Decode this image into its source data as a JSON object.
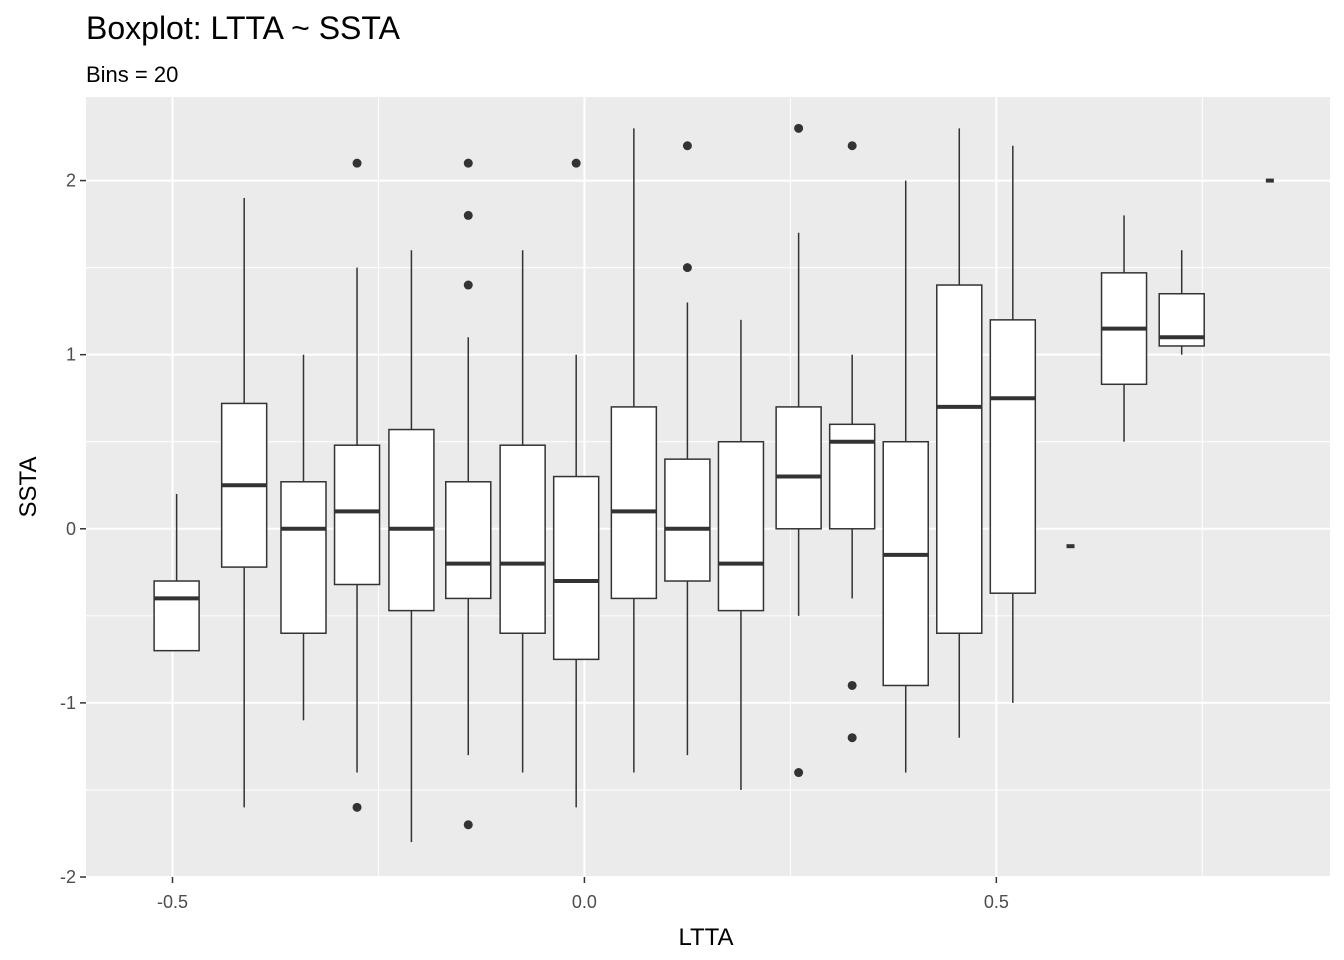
{
  "chart_data": {
    "type": "boxplot",
    "title": "Boxplot: LTTA ~ SSTA",
    "subtitle": "Bins = 20",
    "xlabel": "LTTA",
    "ylabel": "SSTA",
    "xlim": [
      -0.605,
      0.905
    ],
    "ylim": [
      -2.0,
      2.48
    ],
    "x_ticks": [
      -0.5,
      0.0,
      0.5
    ],
    "x_tick_labels": [
      "-0.5",
      "0.0",
      "0.5"
    ],
    "y_ticks": [
      -2,
      -1,
      0,
      1,
      2
    ],
    "y_tick_labels": [
      "-2",
      "-1",
      "0",
      "1",
      "2"
    ],
    "grid": true,
    "colors": {
      "panel": "#ebebeb",
      "grid": "#ffffff",
      "box_fill": "#ffffff",
      "stroke": "#333333",
      "tick_text": "#4d4d4d"
    },
    "boxes": [
      {
        "x": -0.495,
        "lower": -0.7,
        "q1": -0.7,
        "median": -0.4,
        "q3": -0.3,
        "upper": 0.2,
        "outliers": []
      },
      {
        "x": -0.413,
        "lower": -1.6,
        "q1": -0.22,
        "median": 0.25,
        "q3": 0.72,
        "upper": 1.9,
        "outliers": []
      },
      {
        "x": -0.341,
        "lower": -1.1,
        "q1": -0.6,
        "median": 0.0,
        "q3": 0.27,
        "upper": 1.0,
        "outliers": []
      },
      {
        "x": -0.276,
        "lower": -1.4,
        "q1": -0.32,
        "median": 0.1,
        "q3": 0.48,
        "upper": 1.5,
        "outliers": [
          2.1,
          -1.6
        ]
      },
      {
        "x": -0.21,
        "lower": -1.8,
        "q1": -0.47,
        "median": 0.0,
        "q3": 0.57,
        "upper": 1.6,
        "outliers": []
      },
      {
        "x": -0.141,
        "lower": -1.3,
        "q1": -0.4,
        "median": -0.2,
        "q3": 0.27,
        "upper": 1.1,
        "outliers": [
          2.1,
          1.8,
          1.4,
          -1.7
        ]
      },
      {
        "x": -0.075,
        "lower": -1.4,
        "q1": -0.6,
        "median": -0.2,
        "q3": 0.48,
        "upper": 1.6,
        "outliers": []
      },
      {
        "x": -0.01,
        "lower": -1.6,
        "q1": -0.75,
        "median": -0.3,
        "q3": 0.3,
        "upper": 1.0,
        "outliers": [
          2.1
        ]
      },
      {
        "x": 0.06,
        "lower": -1.4,
        "q1": -0.4,
        "median": 0.1,
        "q3": 0.7,
        "upper": 2.3,
        "outliers": []
      },
      {
        "x": 0.125,
        "lower": -1.3,
        "q1": -0.3,
        "median": 0.0,
        "q3": 0.4,
        "upper": 1.3,
        "outliers": [
          2.2,
          1.5
        ]
      },
      {
        "x": 0.19,
        "lower": -1.5,
        "q1": -0.47,
        "median": -0.2,
        "q3": 0.5,
        "upper": 1.2,
        "outliers": []
      },
      {
        "x": 0.26,
        "lower": -0.5,
        "q1": 0.0,
        "median": 0.3,
        "q3": 0.7,
        "upper": 1.7,
        "outliers": [
          2.3,
          -1.4
        ]
      },
      {
        "x": 0.325,
        "lower": -0.4,
        "q1": 0.0,
        "median": 0.5,
        "q3": 0.6,
        "upper": 1.0,
        "outliers": [
          2.2,
          -0.9,
          -1.2
        ]
      },
      {
        "x": 0.39,
        "lower": -1.4,
        "q1": -0.9,
        "median": -0.15,
        "q3": 0.5,
        "upper": 2.0,
        "outliers": []
      },
      {
        "x": 0.455,
        "lower": -1.2,
        "q1": -0.6,
        "median": 0.7,
        "q3": 1.4,
        "upper": 2.3,
        "outliers": []
      },
      {
        "x": 0.52,
        "lower": -1.0,
        "q1": -0.37,
        "median": 0.75,
        "q3": 1.2,
        "upper": 2.2,
        "outliers": []
      },
      {
        "x": 0.59,
        "lower": -0.1,
        "q1": -0.1,
        "median": -0.1,
        "q3": -0.1,
        "upper": -0.1,
        "outliers": []
      },
      {
        "x": 0.655,
        "lower": 0.5,
        "q1": 0.83,
        "median": 1.15,
        "q3": 1.47,
        "upper": 1.8,
        "outliers": []
      },
      {
        "x": 0.725,
        "lower": 1.0,
        "q1": 1.05,
        "median": 1.1,
        "q3": 1.35,
        "upper": 1.6,
        "outliers": []
      },
      {
        "x": 0.832,
        "lower": 2.0,
        "q1": 2.0,
        "median": 2.0,
        "q3": 2.0,
        "upper": 2.0,
        "outliers": []
      }
    ]
  }
}
